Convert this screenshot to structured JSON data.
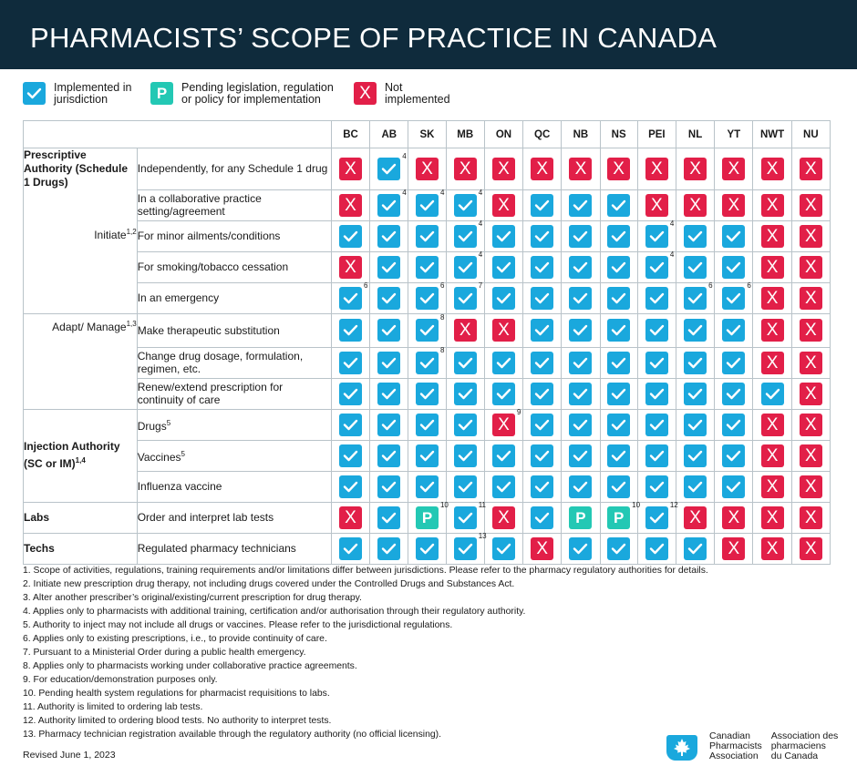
{
  "title": "PHARMACISTS’ SCOPE OF PRACTICE IN CANADA",
  "legend": {
    "implemented": "Implemented in jurisdiction",
    "pending": "Pending legislation, regulation or policy for implementation",
    "pending_symbol": "P",
    "not_implemented": "Not implemented",
    "not_symbol": "X"
  },
  "colors": {
    "header_bg": "#0f2b3c",
    "yes": "#1aa8dd",
    "no": "#e21f48",
    "pending": "#23c8b4"
  },
  "jurisdictions": [
    "BC",
    "AB",
    "SK",
    "MB",
    "ON",
    "QC",
    "NB",
    "NS",
    "PEI",
    "NL",
    "YT",
    "NWT",
    "NU"
  ],
  "groups": [
    {
      "category": "Prescriptive Authority (Schedule 1 Drugs)",
      "rows": [
        {
          "sub": "",
          "desc": "Independently, for any Schedule 1 drug",
          "cells": [
            "X",
            "Y:4",
            "X",
            "X",
            "X",
            "X",
            "X",
            "X",
            "X",
            "X",
            "X",
            "X",
            "X"
          ]
        },
        {
          "sub": "",
          "desc": "In a collaborative practice setting/agreement",
          "cells": [
            "X",
            "Y:4",
            "Y:4",
            "Y:4",
            "X",
            "Y",
            "Y",
            "Y",
            "X",
            "X",
            "X",
            "X",
            "X"
          ]
        },
        {
          "sub": "Initiate",
          "sub_sup": "1,2",
          "desc": "For minor ailments/conditions",
          "cells": [
            "Y",
            "Y",
            "Y",
            "Y:4",
            "Y",
            "Y",
            "Y",
            "Y",
            "Y:4",
            "Y",
            "Y",
            "X",
            "X"
          ]
        },
        {
          "sub": "",
          "desc": "For smoking/tobacco cessation",
          "cells": [
            "X",
            "Y",
            "Y",
            "Y:4",
            "Y",
            "Y",
            "Y",
            "Y",
            "Y:4",
            "Y",
            "Y",
            "X",
            "X"
          ]
        },
        {
          "sub": "",
          "desc": "In an emergency",
          "cells": [
            "Y:6",
            "Y",
            "Y:6",
            "Y:7",
            "Y",
            "Y",
            "Y",
            "Y",
            "Y",
            "Y:6",
            "Y:6",
            "X",
            "X"
          ]
        },
        {
          "sub": "Adapt/ Manage",
          "sub_sup": "1,3",
          "desc": "Make therapeutic substitution",
          "cells": [
            "Y",
            "Y",
            "Y:8",
            "X",
            "X",
            "Y",
            "Y",
            "Y",
            "Y",
            "Y",
            "Y",
            "X",
            "X"
          ]
        },
        {
          "sub": "",
          "desc": "Change drug dosage, formulation, regimen, etc.",
          "cells": [
            "Y",
            "Y",
            "Y:8",
            "Y",
            "Y",
            "Y",
            "Y",
            "Y",
            "Y",
            "Y",
            "Y",
            "X",
            "X"
          ]
        },
        {
          "sub": "",
          "desc": "Renew/extend prescription for continuity of care",
          "cells": [
            "Y",
            "Y",
            "Y",
            "Y",
            "Y",
            "Y",
            "Y",
            "Y",
            "Y",
            "Y",
            "Y",
            "Y",
            "X"
          ]
        }
      ]
    },
    {
      "category": "Injection Authority (SC or IM)",
      "category_sup": "1,4",
      "rows": [
        {
          "desc": "Drugs",
          "desc_sup": "5",
          "cells": [
            "Y",
            "Y",
            "Y",
            "Y",
            "X:9",
            "Y",
            "Y",
            "Y",
            "Y",
            "Y",
            "Y",
            "X",
            "X"
          ]
        },
        {
          "desc": "Vaccines",
          "desc_sup": "5",
          "cells": [
            "Y",
            "Y",
            "Y",
            "Y",
            "Y",
            "Y",
            "Y",
            "Y",
            "Y",
            "Y",
            "Y",
            "X",
            "X"
          ]
        },
        {
          "desc": "Influenza vaccine",
          "cells": [
            "Y",
            "Y",
            "Y",
            "Y",
            "Y",
            "Y",
            "Y",
            "Y",
            "Y",
            "Y",
            "Y",
            "X",
            "X"
          ]
        }
      ]
    },
    {
      "category": "Labs",
      "rows": [
        {
          "desc": "Order and interpret lab tests",
          "cells": [
            "X",
            "Y",
            "P:10",
            "Y:11",
            "X",
            "Y",
            "P",
            "P:10",
            "Y:12",
            "X",
            "X",
            "X",
            "X"
          ]
        }
      ]
    },
    {
      "category": "Techs",
      "rows": [
        {
          "desc": "Regulated pharmacy technicians",
          "cells": [
            "Y",
            "Y",
            "Y",
            "Y:13",
            "Y",
            "X",
            "Y",
            "Y",
            "Y",
            "Y",
            "X",
            "X",
            "X"
          ]
        }
      ]
    }
  ],
  "notes": [
    "1.   Scope of activities, regulations, training requirements and/or limitations differ between jurisdictions. Please refer to the pharmacy regulatory authorities for details.",
    "2.   Initiate new prescription drug therapy, not including drugs covered under the Controlled Drugs and Substances Act.",
    "3.   Alter another prescriber’s original/existing/current prescription for drug therapy.",
    "4.   Applies only to pharmacists with additional training, certification and/or authorisation through their regulatory authority.",
    "5.   Authority to inject may not include all drugs or vaccines. Please refer to the jurisdictional regulations.",
    "6.   Applies only to existing prescriptions, i.e., to provide continuity of care.",
    "7.   Pursuant to a Ministerial Order during a public health emergency.",
    "8.   Applies only to pharmacists working under collaborative practice agreements.",
    "9.   For education/demonstration purposes only.",
    "10. Pending health system regulations for pharmacist requisitions to labs.",
    "11. Authority is limited to ordering lab tests.",
    "12. Authority limited to ordering blood tests. No authority to interpret tests.",
    "13. Pharmacy technician registration available through the regulatory authority (no official licensing)."
  ],
  "revised": "Revised June 1, 2023",
  "logo": {
    "english_lines": [
      "Canadian",
      "Pharmacists",
      "Association"
    ],
    "french_lines": [
      "Association des",
      "pharmaciens",
      "du Canada"
    ]
  }
}
